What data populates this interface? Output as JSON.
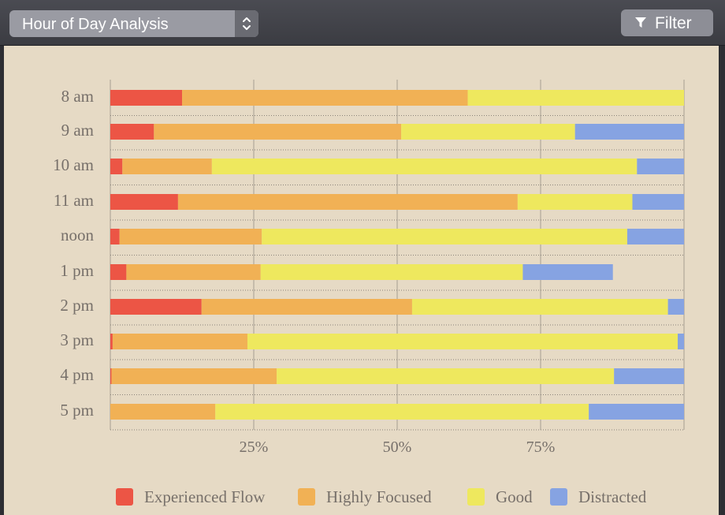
{
  "toolbar": {
    "report_select": {
      "value": "Hour of Day Analysis",
      "icon": "up-down-stepper-icon"
    },
    "filter_button": {
      "label": "Filter",
      "icon": "funnel-icon"
    }
  },
  "colors": {
    "Experienced Flow": "#ec5545",
    "Highly Focused": "#f1b155",
    "Good": "#eee85e",
    "Distracted": "#86a3e2"
  },
  "chart_data": {
    "type": "bar",
    "orientation": "horizontal",
    "stacked": true,
    "categories": [
      "8 am",
      "9 am",
      "10 am",
      "11 am",
      "noon",
      "1 pm",
      "2 pm",
      "3 pm",
      "4 pm",
      "5 pm"
    ],
    "series": [
      {
        "name": "Experienced Flow",
        "values": [
          12.5,
          7.6,
          2.1,
          11.8,
          1.6,
          2.8,
          15.9,
          0.4,
          0.2,
          0.0
        ]
      },
      {
        "name": "Highly Focused",
        "values": [
          49.8,
          43.1,
          15.6,
          59.2,
          24.8,
          23.4,
          36.7,
          23.5,
          28.8,
          18.3
        ]
      },
      {
        "name": "Good",
        "values": [
          37.7,
          30.3,
          74.1,
          20.0,
          63.7,
          45.7,
          44.6,
          75.0,
          58.8,
          65.1
        ]
      },
      {
        "name": "Distracted",
        "values": [
          0.0,
          19.0,
          8.2,
          9.0,
          9.9,
          15.7,
          2.8,
          1.1,
          12.2,
          16.6
        ]
      }
    ],
    "x_ticks": [
      "25%",
      "50%",
      "75%"
    ],
    "xlim": [
      0,
      100
    ],
    "grid": true,
    "legend": [
      "Experienced Flow",
      "Highly Focused",
      "Good",
      "Distracted"
    ],
    "legend_position": "bottom"
  }
}
